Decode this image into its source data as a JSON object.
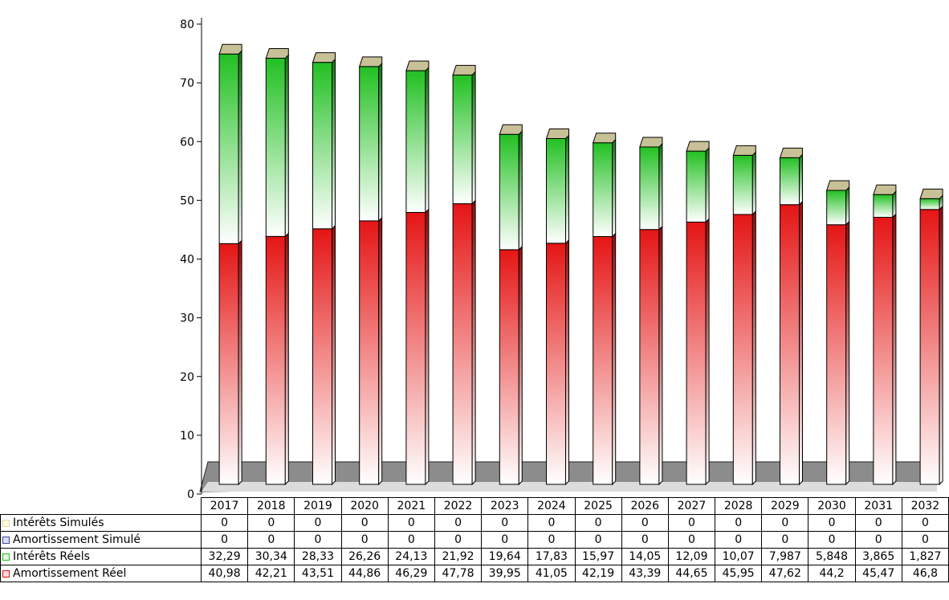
{
  "chart_data": {
    "type": "bar",
    "stacked": true,
    "three_d": true,
    "categories": [
      "2017",
      "2018",
      "2019",
      "2020",
      "2021",
      "2022",
      "2023",
      "2024",
      "2025",
      "2026",
      "2027",
      "2028",
      "2029",
      "2030",
      "2031",
      "2032"
    ],
    "series": [
      {
        "name": "Intérêts Simulés",
        "color": "#e0d8a0",
        "values": [
          0,
          0,
          0,
          0,
          0,
          0,
          0,
          0,
          0,
          0,
          0,
          0,
          0,
          0,
          0,
          0
        ],
        "labels": [
          "0",
          "0",
          "0",
          "0",
          "0",
          "0",
          "0",
          "0",
          "0",
          "0",
          "0",
          "0",
          "0",
          "0",
          "0",
          "0"
        ]
      },
      {
        "name": "Amortissement Simulé",
        "color": "#3a4aa0",
        "values": [
          0,
          0,
          0,
          0,
          0,
          0,
          0,
          0,
          0,
          0,
          0,
          0,
          0,
          0,
          0,
          0
        ],
        "labels": [
          "0",
          "0",
          "0",
          "0",
          "0",
          "0",
          "0",
          "0",
          "0",
          "0",
          "0",
          "0",
          "0",
          "0",
          "0",
          "0"
        ]
      },
      {
        "name": "Intérêts Réels",
        "color": "#22c022",
        "values": [
          32.29,
          30.34,
          28.33,
          26.26,
          24.13,
          21.92,
          19.64,
          17.83,
          15.97,
          14.05,
          12.09,
          10.07,
          7.987,
          5.848,
          3.865,
          1.827
        ],
        "labels": [
          "32,29",
          "30,34",
          "28,33",
          "26,26",
          "24,13",
          "21,92",
          "19,64",
          "17,83",
          "15,97",
          "14,05",
          "12,09",
          "10,07",
          "7,987",
          "5,848",
          "3,865",
          "1,827"
        ]
      },
      {
        "name": "Amortissement Réel",
        "color": "#e51515",
        "values": [
          40.98,
          42.21,
          43.51,
          44.86,
          46.29,
          47.78,
          39.95,
          41.05,
          42.19,
          43.39,
          44.65,
          45.95,
          47.62,
          44.2,
          45.47,
          46.8
        ],
        "labels": [
          "40,98",
          "42,21",
          "43,51",
          "44,86",
          "46,29",
          "47,78",
          "39,95",
          "41,05",
          "42,19",
          "43,39",
          "44,65",
          "45,95",
          "47,62",
          "44,2",
          "45,47",
          "46,8"
        ]
      }
    ],
    "ylim": [
      0,
      80
    ],
    "yticks": [
      "0",
      "10",
      "20",
      "30",
      "40",
      "50",
      "60",
      "70",
      "80"
    ],
    "legend": "data-table-below",
    "floor_color": "#8c8c8c",
    "cap_color": "#c8c096"
  }
}
